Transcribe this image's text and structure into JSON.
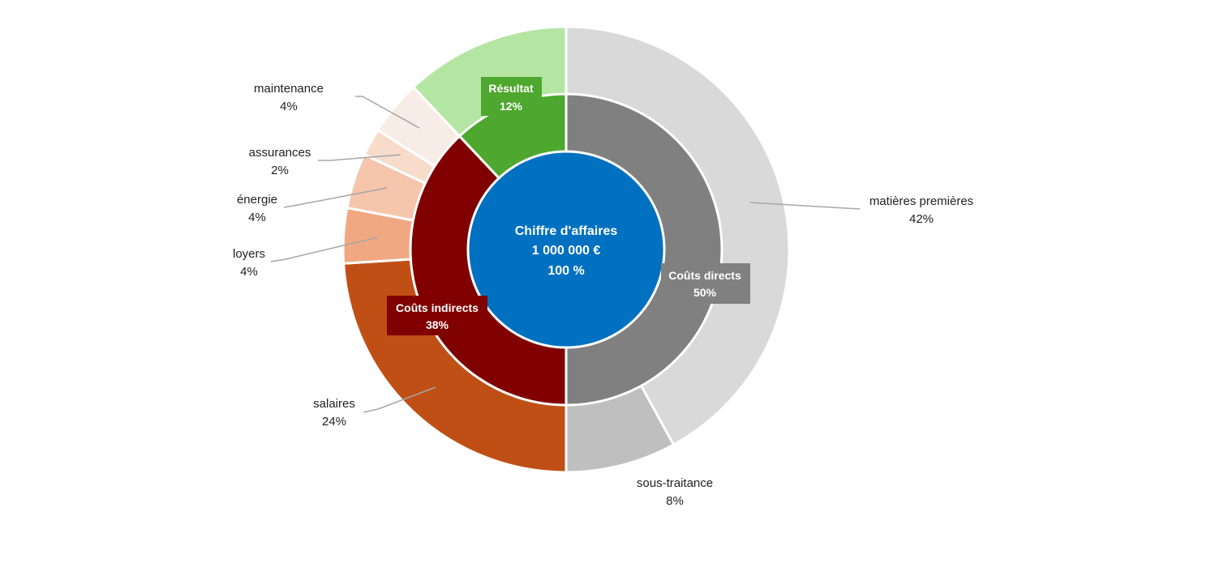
{
  "chart_data": {
    "type": "sunburst",
    "center": {
      "line1": "Chiffre d'affaires",
      "line2": "1 000 000 €",
      "line3": "100 %",
      "color": "#0070c0"
    },
    "inner_ring": [
      {
        "name": "Coûts directs",
        "value": 50,
        "label": "50%",
        "color": "#808080"
      },
      {
        "name": "Coûts indirects",
        "value": 38,
        "label": "38%",
        "color": "#800000"
      },
      {
        "name": "Résultat",
        "value": 12,
        "label": "12%",
        "color": "#4ea72e"
      }
    ],
    "outer_ring": [
      {
        "name": "matières premières",
        "value": 42,
        "label": "42%",
        "color": "#d9d9d9"
      },
      {
        "name": "sous-traitance",
        "value": 8,
        "label": "8%",
        "color": "#bfbfbf"
      },
      {
        "name": "salaires",
        "value": 24,
        "label": "24%",
        "color": "#c04f15"
      },
      {
        "name": "loyers",
        "value": 4,
        "label": "4%",
        "color": "#f0a882"
      },
      {
        "name": "énergie",
        "value": 4,
        "label": "4%",
        "color": "#f5c6ac"
      },
      {
        "name": "assurances",
        "value": 2,
        "label": "2%",
        "color": "#f8dccb"
      },
      {
        "name": "maintenance",
        "value": 4,
        "label": "4%",
        "color": "#f7ece6"
      },
      {
        "name": "Résultat",
        "value": 12,
        "label": "",
        "color": "#b4e5a2"
      }
    ]
  }
}
